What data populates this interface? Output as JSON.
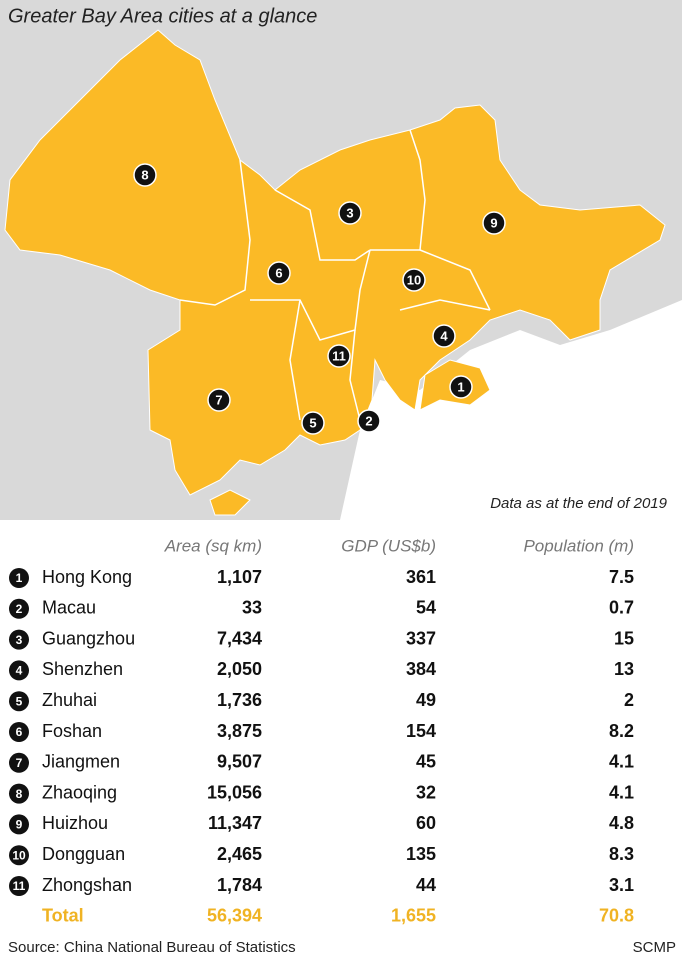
{
  "header": {
    "title": "Greater Bay Area cities at a glance"
  },
  "map": {
    "markers": [
      "8",
      "3",
      "9",
      "6",
      "10",
      "4",
      "11",
      "1",
      "7",
      "5",
      "2"
    ],
    "note": "Data as at the end of 2019"
  },
  "table": {
    "columns": [
      "Area (sq km)",
      "GDP (US$b)",
      "Population (m)"
    ],
    "rows": [
      {
        "number": "1",
        "city": "Hong Kong",
        "area": "1,107",
        "gdp": "361",
        "population": "7.5"
      },
      {
        "number": "2",
        "city": "Macau",
        "area": "33",
        "gdp": "54",
        "population": "0.7"
      },
      {
        "number": "3",
        "city": "Guangzhou",
        "area": "7,434",
        "gdp": "337",
        "population": "15"
      },
      {
        "number": "4",
        "city": "Shenzhen",
        "area": "2,050",
        "gdp": "384",
        "population": "13"
      },
      {
        "number": "5",
        "city": "Zhuhai",
        "area": "1,736",
        "gdp": "49",
        "population": "2"
      },
      {
        "number": "6",
        "city": "Foshan",
        "area": "3,875",
        "gdp": "154",
        "population": "8.2"
      },
      {
        "number": "7",
        "city": "Jiangmen",
        "area": "9,507",
        "gdp": "45",
        "population": "4.1"
      },
      {
        "number": "8",
        "city": "Zhaoqing",
        "area": "15,056",
        "gdp": "32",
        "population": "4.1"
      },
      {
        "number": "9",
        "city": "Huizhou",
        "area": "11,347",
        "gdp": "60",
        "population": "4.8"
      },
      {
        "number": "10",
        "city": "Dongguan",
        "area": "2,465",
        "gdp": "135",
        "population": "8.3"
      },
      {
        "number": "11",
        "city": "Zhongshan",
        "area": "1,784",
        "gdp": "44",
        "population": "3.1"
      }
    ],
    "total": {
      "label": "Total",
      "area": "56,394",
      "gdp": "1,655",
      "population": "70.8"
    }
  },
  "footer": {
    "source": "Source: China National Bureau of Statistics",
    "credit": "SCMP"
  }
}
